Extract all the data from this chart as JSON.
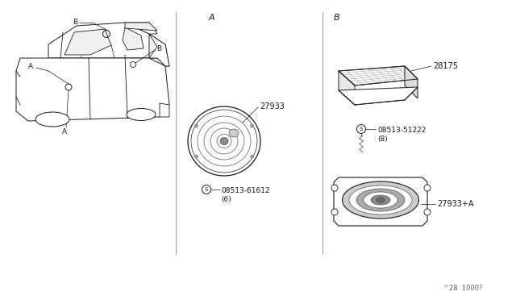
{
  "bg_color": "#ffffff",
  "line_color": "#1a1a1a",
  "fig_width": 6.4,
  "fig_height": 3.72,
  "dpi": 100,
  "footer_text": "^28  1000?",
  "part_27933": "27933",
  "part_screw_a": "08513-61612\n(6)",
  "part_28175": "28175",
  "part_screw_b": "08513-51222\n(8)",
  "part_27933a": "27933+A"
}
